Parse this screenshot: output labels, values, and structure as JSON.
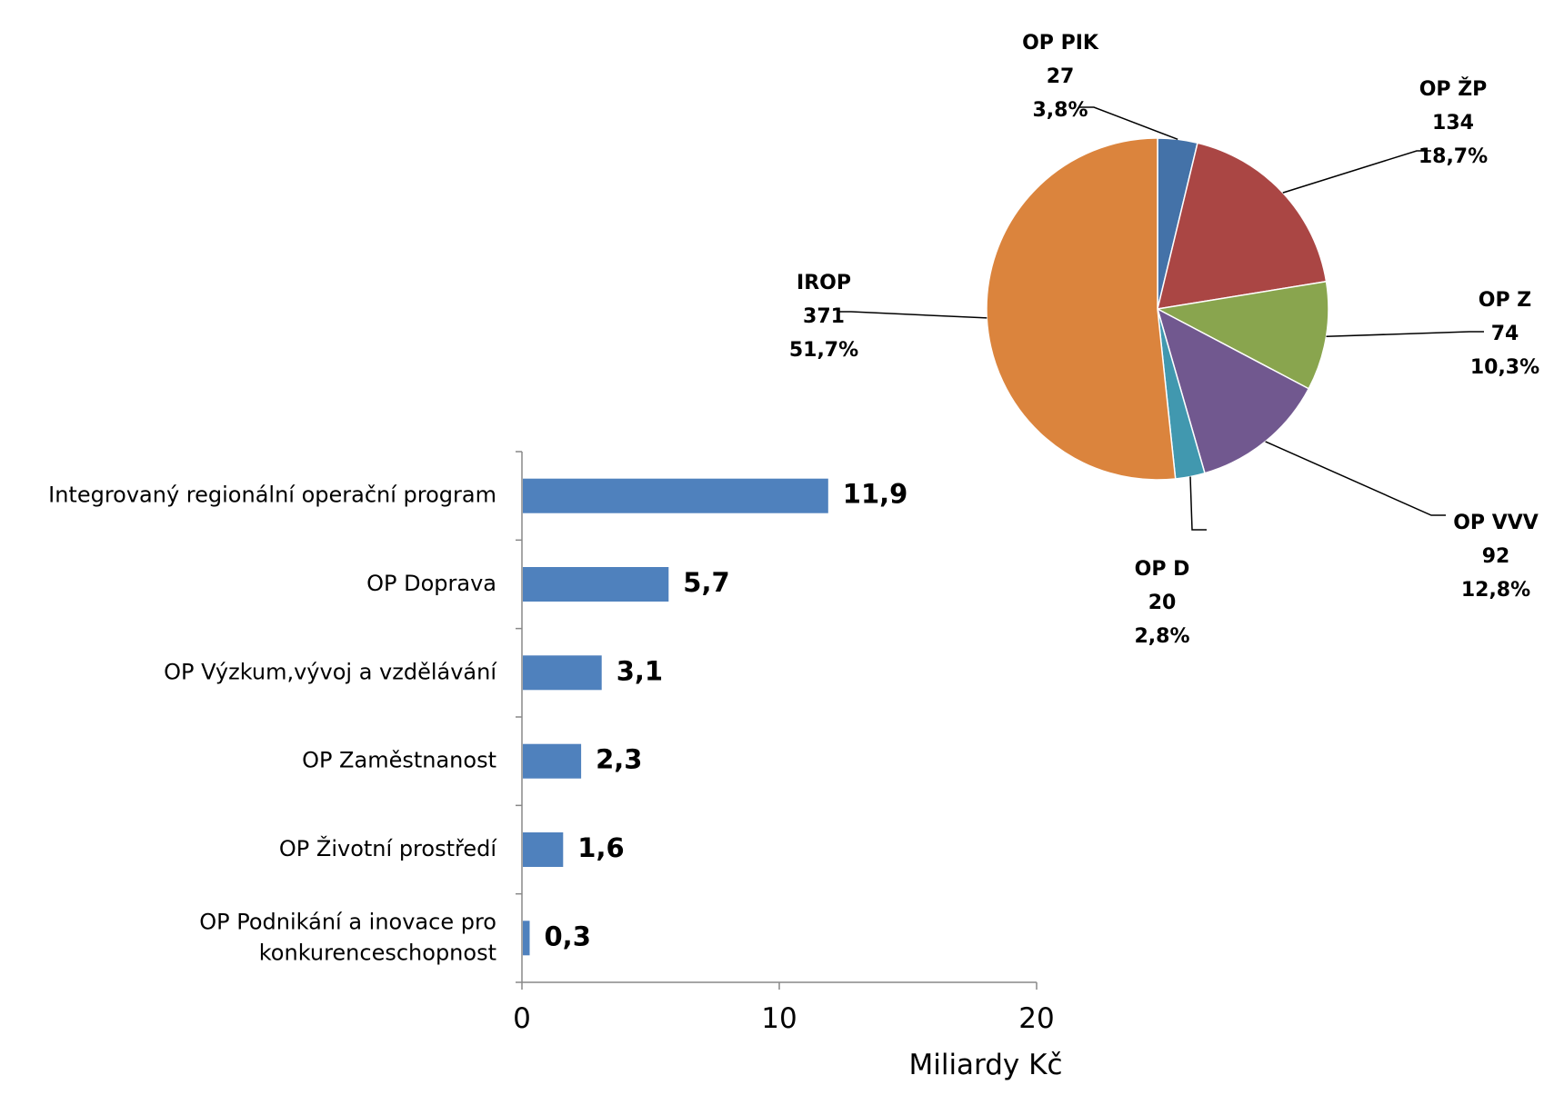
{
  "chart_data": [
    {
      "type": "pie",
      "slices": [
        {
          "label": "OP PIK",
          "value": 27,
          "percent": "3,8%",
          "color": "#4472A8"
        },
        {
          "label": "OP ŽP",
          "value": 134,
          "percent": "18,7%",
          "color": "#AA4644"
        },
        {
          "label": "OP Z",
          "value": 74,
          "percent": "10,3%",
          "color": "#89A54E"
        },
        {
          "label": "OP VVV",
          "value": 92,
          "percent": "12,8%",
          "color": "#71588F"
        },
        {
          "label": "OP D",
          "value": 20,
          "percent": "2,8%",
          "color": "#4198AF"
        },
        {
          "label": "IROP",
          "value": 371,
          "percent": "51,7%",
          "color": "#DB843D"
        }
      ],
      "start_angle_deg": 0,
      "direction": "clockwise",
      "leader_lines": true
    },
    {
      "type": "bar",
      "orientation": "horizontal",
      "categories": [
        [
          "Integrovaný regionální operační program"
        ],
        [
          "OP Doprava"
        ],
        [
          "OP Výzkum,vývoj a vzdělávání"
        ],
        [
          "OP Zaměstnanost"
        ],
        [
          "OP Životní prostředí"
        ],
        [
          "OP Podnikání a inovace pro",
          "konkurenceschopnost"
        ]
      ],
      "values": [
        11.9,
        5.7,
        3.1,
        2.3,
        1.6,
        0.3
      ],
      "value_labels": [
        "11,9",
        "5,7",
        "3,1",
        "2,3",
        "1,6",
        "0,3"
      ],
      "bar_color": "#4F81BD",
      "xlabel": "Miliardy Kč",
      "xlim": [
        0,
        20
      ],
      "xticks": [
        0,
        10,
        20
      ],
      "xtick_labels": [
        "0",
        "10",
        "20"
      ],
      "grid": false
    }
  ]
}
